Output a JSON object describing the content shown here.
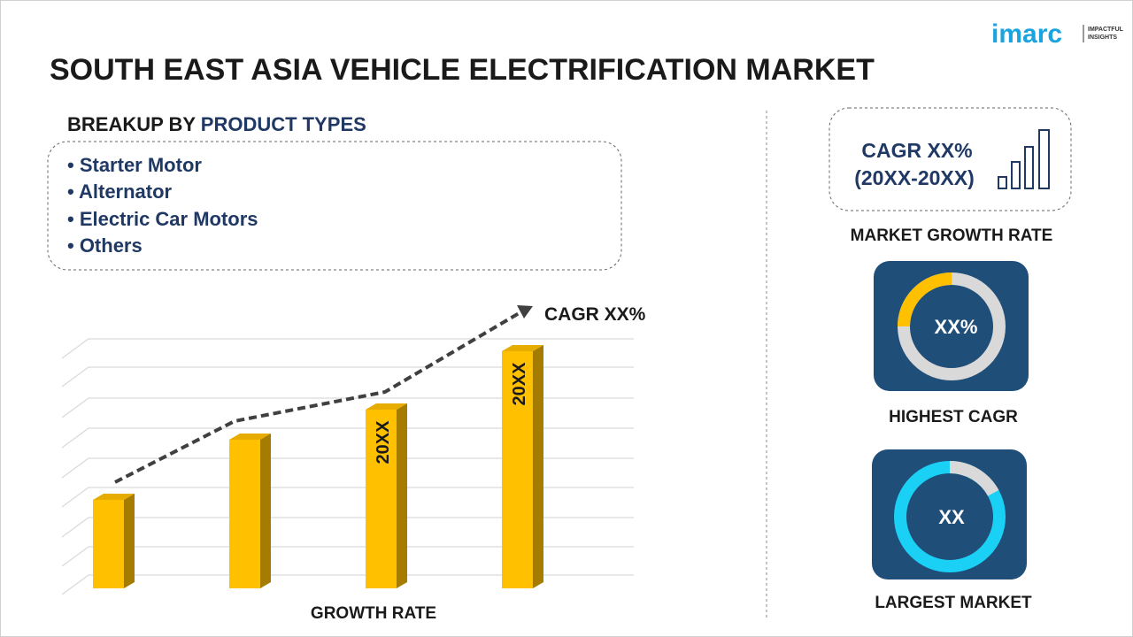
{
  "header": {
    "logo": "imarc",
    "tagline": [
      "IMPACTFUL",
      "INSIGHTS"
    ],
    "title": "SOUTH EAST ASIA VEHICLE ELECTRIFICATION MARKET"
  },
  "breakup": {
    "label": "BREAKUP BY",
    "highlight": "PRODUCT TYPES",
    "items": [
      "• Starter Motor",
      "• Alternator",
      "• Electric Car Motors",
      "• Others"
    ]
  },
  "growth": {
    "annotation": "CAGR XX%",
    "bar_labels": [
      "20XX",
      "20XX"
    ],
    "axis_label": "GROWTH RATE"
  },
  "stats": {
    "cagr": "CAGR XX%",
    "period": "(20XX-20XX)",
    "cagr_caption": "MARKET GROWTH RATE",
    "highest_value": "XX%",
    "highest_caption": "HIGHEST CAGR",
    "largest_value": "XX",
    "largest_caption": "LARGEST MARKET"
  }
}
